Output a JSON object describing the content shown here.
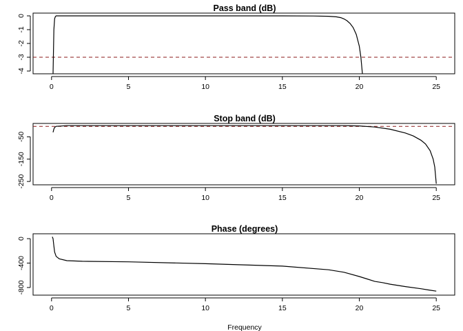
{
  "figure": {
    "xlabel": "Frequency"
  },
  "chart_data": [
    {
      "type": "line",
      "title": "Pass band (dB)",
      "xlabel": "",
      "ylabel": "",
      "xlim": [
        -1.2,
        26.2
      ],
      "ylim": [
        -4.2,
        0.2
      ],
      "xticks": [
        0,
        5,
        10,
        15,
        20,
        25
      ],
      "yticks": [
        0,
        -1,
        -2,
        -3,
        -4
      ],
      "grid": false,
      "series": [
        {
          "x": [
            0.1,
            0.15,
            0.2,
            0.25,
            0.3,
            1,
            5,
            10,
            15,
            17,
            18,
            18.5,
            18.8,
            19.0,
            19.2,
            19.4,
            19.6,
            19.8,
            20.0,
            20.1,
            20.2
          ],
          "y": [
            -4.2,
            -1.0,
            -0.2,
            -0.05,
            0,
            0,
            0,
            0,
            0,
            -0.01,
            -0.03,
            -0.07,
            -0.13,
            -0.22,
            -0.35,
            -0.55,
            -0.85,
            -1.35,
            -2.2,
            -3.0,
            -4.2
          ]
        }
      ],
      "reference_line": {
        "y": -3,
        "color": "#8b1a1a"
      }
    },
    {
      "type": "line",
      "title": "Stop band (dB)",
      "xlabel": "",
      "ylabel": "",
      "xlim": [
        -1.2,
        26.2
      ],
      "ylim": [
        -265,
        10
      ],
      "xticks": [
        0,
        5,
        10,
        15,
        20,
        25
      ],
      "yticks": [
        -50,
        -150,
        -250
      ],
      "grid": false,
      "series": [
        {
          "x": [
            0.1,
            0.15,
            0.2,
            0.3,
            1,
            5,
            10,
            15,
            19,
            20,
            21,
            22,
            23,
            23.5,
            24,
            24.3,
            24.6,
            24.8,
            24.9,
            25
          ],
          "y": [
            -30,
            -15,
            -8,
            -3,
            0,
            0,
            0,
            0,
            0,
            -1,
            -6,
            -16,
            -33,
            -46,
            -65,
            -82,
            -112,
            -150,
            -185,
            -260
          ]
        }
      ],
      "reference_line": {
        "y": -3,
        "color": "#8b1a1a"
      }
    },
    {
      "type": "line",
      "title": "Phase (degrees)",
      "xlabel": "Frequency",
      "ylabel": "",
      "xlim": [
        -1.2,
        26.2
      ],
      "ylim": [
        -925,
        80
      ],
      "xticks": [
        0,
        5,
        10,
        15,
        20,
        25
      ],
      "yticks": [
        0,
        -400,
        -800
      ],
      "grid": false,
      "series": [
        {
          "x": [
            0.05,
            0.1,
            0.15,
            0.2,
            0.3,
            0.5,
            1,
            2,
            5,
            10,
            15,
            18,
            19,
            20,
            20.5,
            21,
            21.5,
            22,
            23,
            24,
            24.5,
            25
          ],
          "y": [
            30,
            0,
            -120,
            -220,
            -290,
            -330,
            -360,
            -370,
            -380,
            -410,
            -450,
            -510,
            -550,
            -620,
            -660,
            -700,
            -720,
            -745,
            -785,
            -820,
            -840,
            -860
          ]
        }
      ]
    }
  ]
}
